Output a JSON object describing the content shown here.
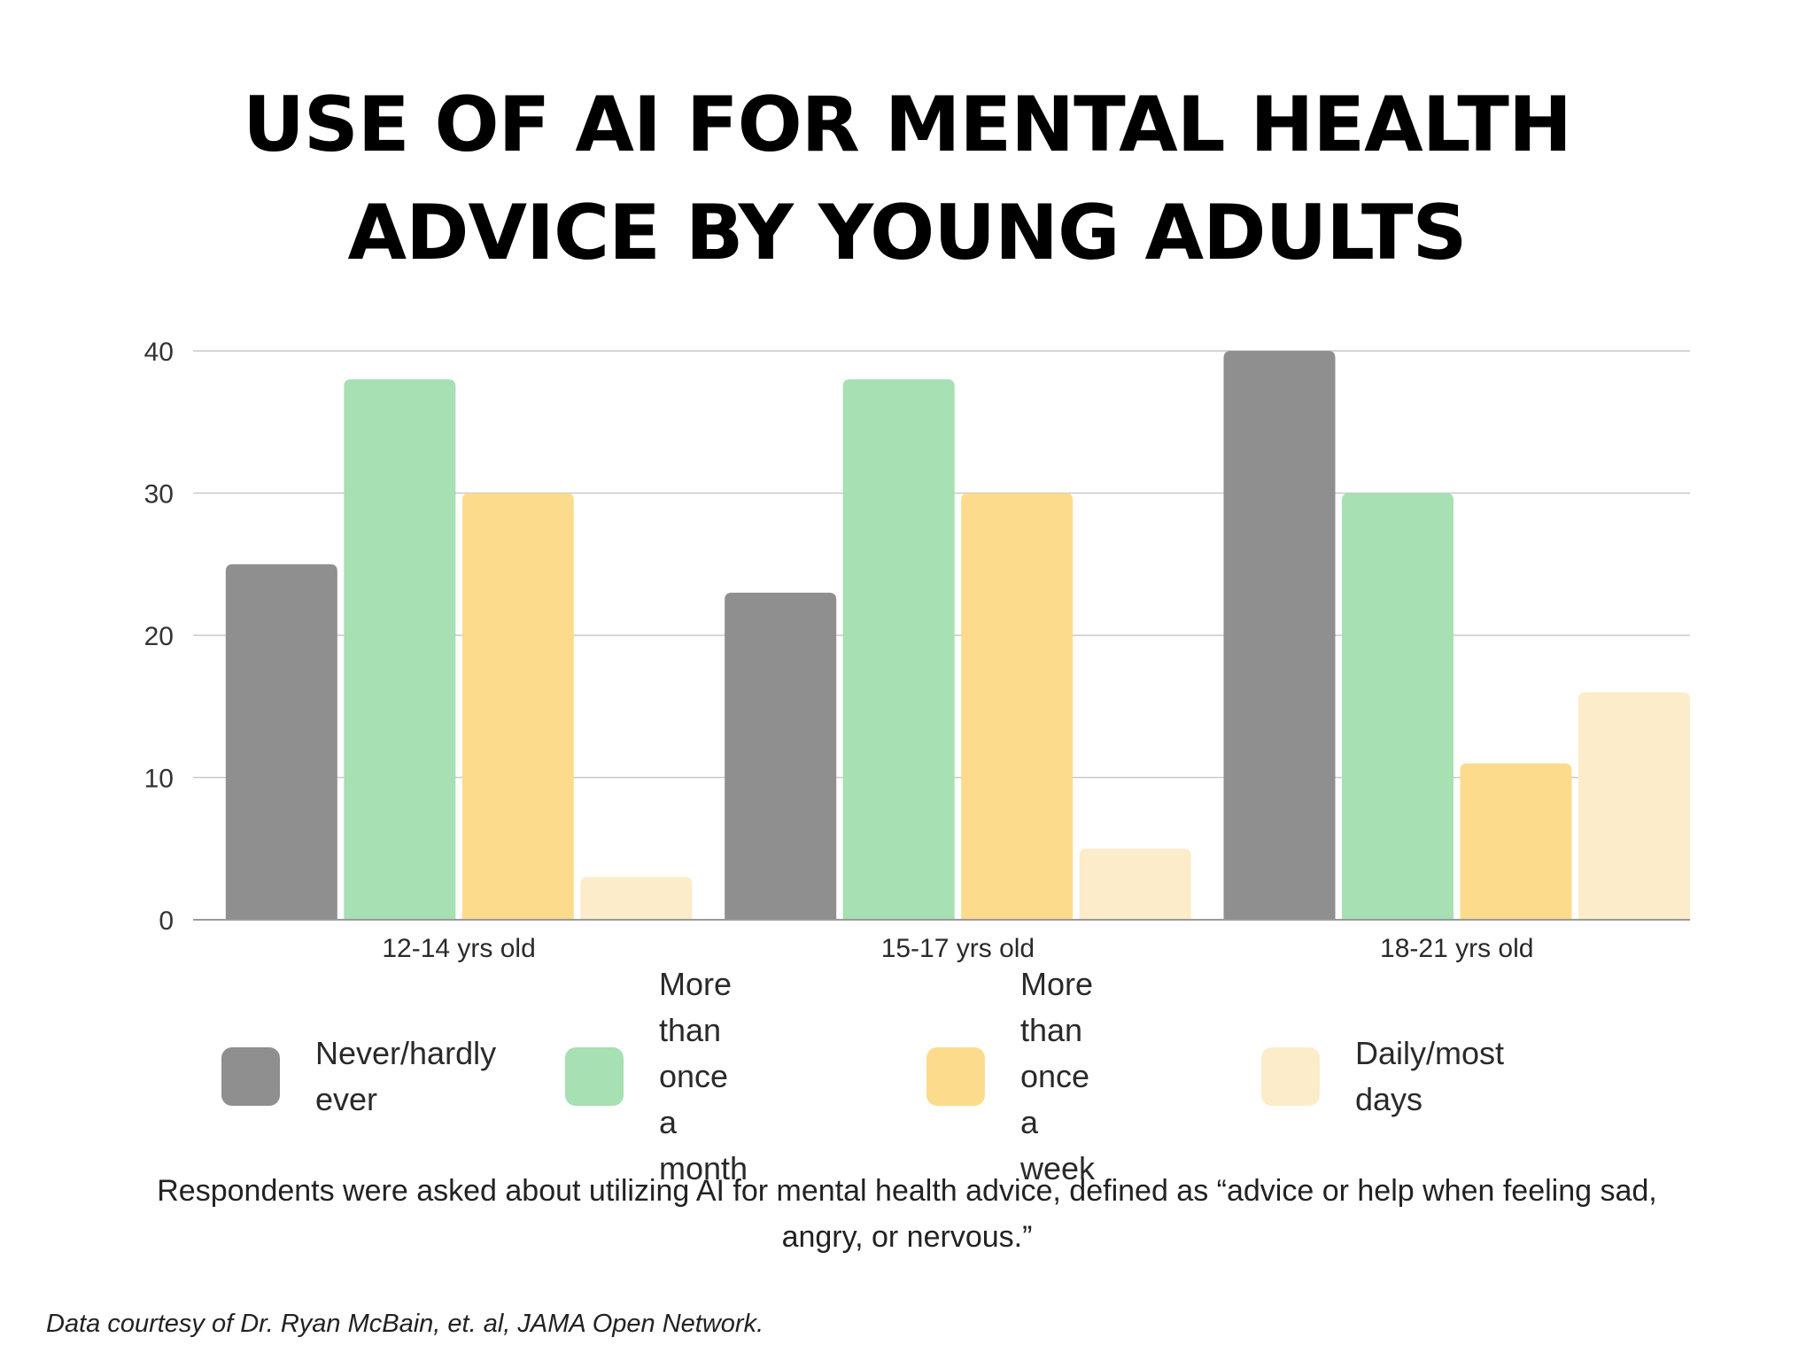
{
  "title_lines": [
    "USE OF AI FOR MENTAL HEALTH",
    "ADVICE BY YOUNG ADULTS"
  ],
  "chart_data": {
    "type": "bar",
    "title": "USE OF AI FOR MENTAL HEALTH ADVICE BY YOUNG ADULTS",
    "xlabel": "",
    "ylabel": "",
    "ylim": [
      0,
      40
    ],
    "yticks": [
      0,
      10,
      20,
      30,
      40
    ],
    "grid": true,
    "legend_position": "bottom",
    "categories": [
      "12-14 yrs old",
      "15-17 yrs old",
      "18-21 yrs old"
    ],
    "series": [
      {
        "name": "Never/hardly ever",
        "color": "#8f8f8f",
        "values": [
          25,
          23,
          40
        ]
      },
      {
        "name": "More than once a month",
        "color": "#a6e0b3",
        "values": [
          38,
          38,
          30
        ]
      },
      {
        "name": "More than once a week",
        "color": "#fcdc8c",
        "values": [
          30,
          30,
          11
        ]
      },
      {
        "name": "Daily/most days",
        "color": "#fdecc9",
        "values": [
          3,
          5,
          16
        ]
      }
    ]
  },
  "legend": [
    {
      "label": "Never/hardly\never",
      "color": "#8f8f8f"
    },
    {
      "label": "More than\nonce a month",
      "color": "#a6e0b3"
    },
    {
      "label": "More than\nonce a week",
      "color": "#fcdc8c"
    },
    {
      "label": "Daily/most days",
      "color": "#fdecc9"
    }
  ],
  "footnote": "Respondents were asked about utilizing AI for mental health advice, defined as “advice or help when feeling sad, angry, or nervous.”",
  "source": "Data courtesy of Dr. Ryan McBain, et. al, JAMA Open Network."
}
